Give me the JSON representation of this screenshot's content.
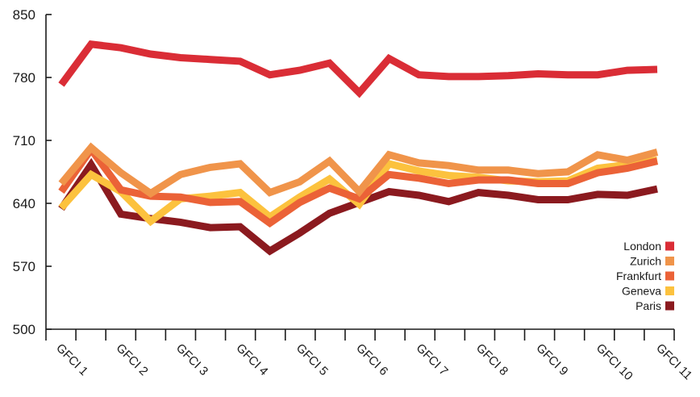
{
  "chart_data": {
    "type": "line",
    "title": "",
    "xlabel": "",
    "ylabel": "",
    "ylim": [
      500,
      850
    ],
    "yticks": [
      500,
      570,
      640,
      710,
      780,
      850
    ],
    "x_tick_labels": [
      "GFCI 1",
      "GFCI 2",
      "GFCI 3",
      "GFCI 4",
      "GFCI 5",
      "GFCI 6",
      "GFCI 7",
      "GFCI 8",
      "GFCI 9",
      "GFCI 10",
      "GFCI 11"
    ],
    "legend_position": "bottom-right",
    "grid": false,
    "series": [
      {
        "name": "Paris",
        "color": "#8b1a1f",
        "values": [
          634,
          683,
          628,
          623,
          619,
          613,
          614,
          587,
          607,
          629,
          641,
          653,
          649,
          642,
          652,
          649,
          644,
          644,
          650,
          649,
          656
        ]
      },
      {
        "name": "Geneva",
        "color": "#fcc23e",
        "values": [
          635,
          672,
          653,
          620,
          645,
          648,
          652,
          625,
          647,
          667,
          639,
          684,
          676,
          671,
          669,
          665,
          664,
          665,
          679,
          683,
          688
        ]
      },
      {
        "name": "Frankfurt",
        "color": "#eb6237",
        "values": [
          653,
          700,
          655,
          648,
          647,
          641,
          642,
          618,
          641,
          657,
          645,
          672,
          668,
          662,
          666,
          666,
          662,
          662,
          674,
          679,
          687
        ]
      },
      {
        "name": "Zurich",
        "color": "#f0944a",
        "values": [
          662,
          702,
          674,
          651,
          672,
          680,
          684,
          652,
          664,
          687,
          653,
          694,
          685,
          682,
          677,
          677,
          673,
          675,
          694,
          688,
          697
        ]
      },
      {
        "name": "London",
        "color": "#da2d36",
        "values": [
          772,
          817,
          813,
          806,
          802,
          800,
          798,
          783,
          788,
          796,
          763,
          801,
          783,
          781,
          781,
          782,
          784,
          783,
          783,
          788,
          789
        ]
      }
    ],
    "legend_order": [
      "London",
      "Zurich",
      "Frankfurt",
      "Geneva",
      "Paris"
    ]
  }
}
